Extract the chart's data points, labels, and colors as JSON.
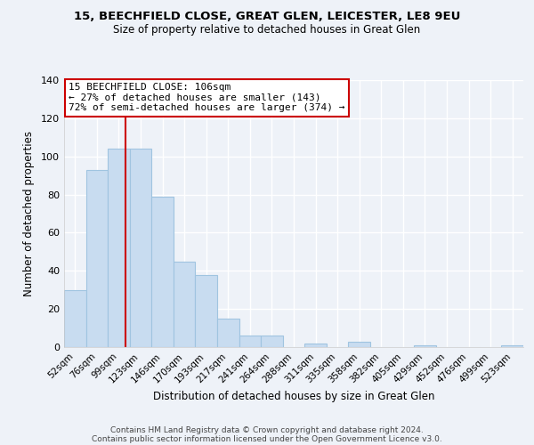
{
  "title": "15, BEECHFIELD CLOSE, GREAT GLEN, LEICESTER, LE8 9EU",
  "subtitle": "Size of property relative to detached houses in Great Glen",
  "xlabel": "Distribution of detached houses by size in Great Glen",
  "ylabel": "Number of detached properties",
  "bar_labels": [
    "52sqm",
    "76sqm",
    "99sqm",
    "123sqm",
    "146sqm",
    "170sqm",
    "193sqm",
    "217sqm",
    "241sqm",
    "264sqm",
    "288sqm",
    "311sqm",
    "335sqm",
    "358sqm",
    "382sqm",
    "405sqm",
    "429sqm",
    "452sqm",
    "476sqm",
    "499sqm",
    "523sqm"
  ],
  "bar_values": [
    30,
    93,
    104,
    104,
    79,
    45,
    38,
    15,
    6,
    6,
    0,
    2,
    0,
    3,
    0,
    0,
    1,
    0,
    0,
    0,
    1
  ],
  "bar_color": "#c8dcf0",
  "bar_edge_color": "#a0c4e0",
  "highlight_line_color": "#cc0000",
  "annotation_title": "15 BEECHFIELD CLOSE: 106sqm",
  "annotation_line1": "← 27% of detached houses are smaller (143)",
  "annotation_line2": "72% of semi-detached houses are larger (374) →",
  "annotation_box_color": "#ffffff",
  "annotation_box_edge": "#cc0000",
  "ylim": [
    0,
    140
  ],
  "yticks": [
    0,
    20,
    40,
    60,
    80,
    100,
    120,
    140
  ],
  "footer1": "Contains HM Land Registry data © Crown copyright and database right 2024.",
  "footer2": "Contains public sector information licensed under the Open Government Licence v3.0.",
  "background_color": "#eef2f8"
}
